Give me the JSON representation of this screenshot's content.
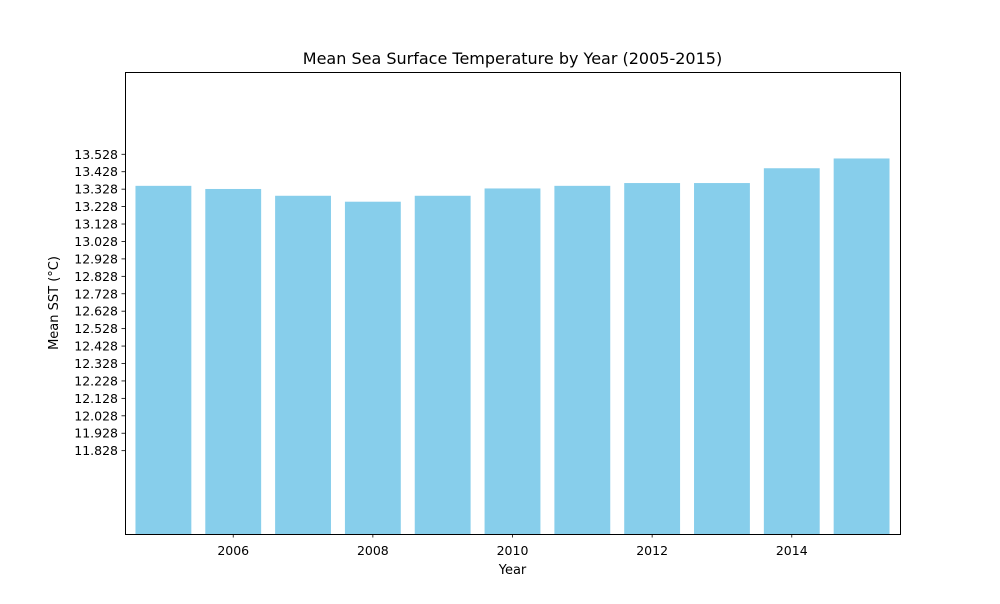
{
  "chart_data": {
    "type": "bar",
    "title": "Mean Sea Surface Temperature by Year (2005-2015)",
    "xlabel": "Year",
    "ylabel": "Mean SST (°C)",
    "categories": [
      2005,
      2006,
      2007,
      2008,
      2009,
      2010,
      2011,
      2012,
      2013,
      2014,
      2015
    ],
    "values": [
      13.347,
      13.329,
      13.29,
      13.256,
      13.29,
      13.332,
      13.347,
      13.363,
      13.363,
      13.448,
      13.504
    ],
    "xlim": [
      2004.45,
      2015.55
    ],
    "ylim": [
      11.35,
      14.0
    ],
    "xticks": [
      2006,
      2008,
      2010,
      2012,
      2014
    ],
    "xtick_labels": [
      "2006",
      "2008",
      "2010",
      "2012",
      "2014"
    ],
    "yticks": [
      11.828,
      11.928,
      12.028,
      12.128,
      12.228,
      12.328,
      12.428,
      12.528,
      12.628,
      12.728,
      12.828,
      12.928,
      13.028,
      13.128,
      13.228,
      13.328,
      13.428,
      13.528
    ],
    "ytick_labels": [
      "11.828",
      "11.928",
      "12.028",
      "12.128",
      "12.228",
      "12.328",
      "12.428",
      "12.528",
      "12.628",
      "12.728",
      "12.828",
      "12.928",
      "13.028",
      "13.128",
      "13.228",
      "13.328",
      "13.428",
      "13.528"
    ],
    "bar_color": "#87ceeb",
    "grid": false,
    "legend": "none"
  }
}
